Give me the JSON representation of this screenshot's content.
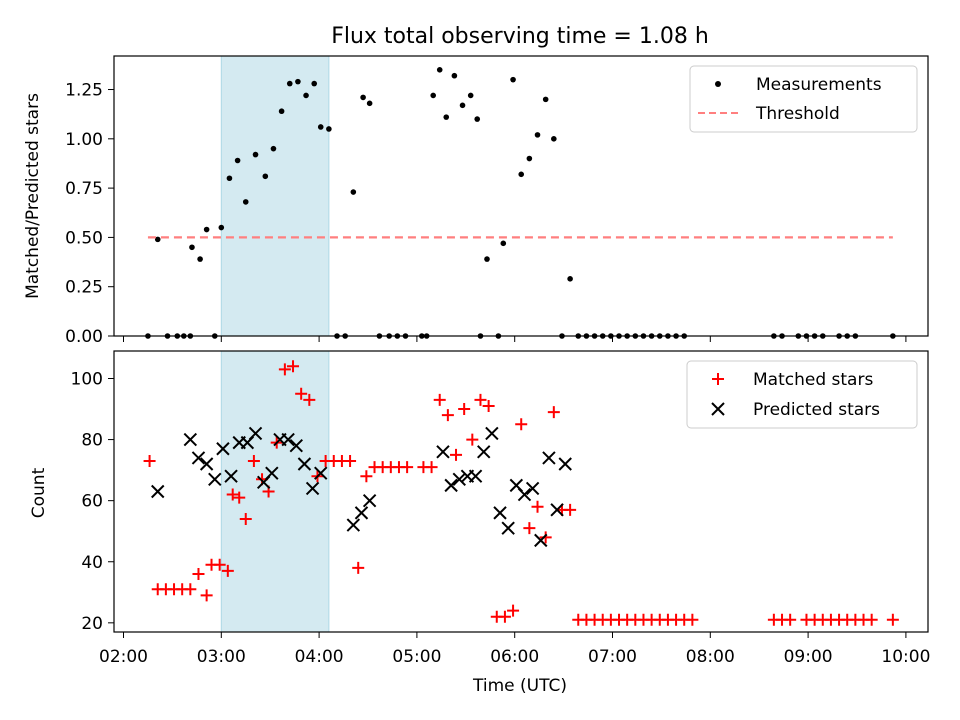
{
  "title": "Flux total observing time = 1.08 h",
  "chart_data": [
    {
      "type": "scatter",
      "ylabel": "Matched/Predicted stars",
      "xlabel": "",
      "xlim": [
        "02:00",
        "10:00"
      ],
      "ylim": [
        0,
        1.42
      ],
      "yticks": [
        0.0,
        0.25,
        0.5,
        0.75,
        1.0,
        1.25
      ],
      "ytick_labels": [
        "0.00",
        "0.25",
        "0.50",
        "0.75",
        "1.00",
        "1.25"
      ],
      "shaded_span": [
        "03:00",
        "04:06"
      ],
      "shade_color": "#d4eaf1",
      "legend": {
        "position": "top-right",
        "entries": [
          "Measurements",
          "Threshold"
        ]
      },
      "series": [
        {
          "name": "Measurements",
          "marker": "dot",
          "color": "#000000",
          "points": [
            [
              "02:15",
              0
            ],
            [
              "02:21",
              0.49
            ],
            [
              "02:27",
              0
            ],
            [
              "02:33",
              0
            ],
            [
              "02:37",
              0
            ],
            [
              "02:41",
              0
            ],
            [
              "02:42",
              0.45
            ],
            [
              "02:47",
              0.39
            ],
            [
              "02:51",
              0.54
            ],
            [
              "02:56",
              0
            ],
            [
              "03:00",
              0.55
            ],
            [
              "03:05",
              0.8
            ],
            [
              "03:10",
              0.89
            ],
            [
              "03:15",
              0.68
            ],
            [
              "03:21",
              0.92
            ],
            [
              "03:27",
              0.81
            ],
            [
              "03:32",
              0.95
            ],
            [
              "03:37",
              1.14
            ],
            [
              "03:42",
              1.28
            ],
            [
              "03:47",
              1.29
            ],
            [
              "03:52",
              1.22
            ],
            [
              "03:57",
              1.28
            ],
            [
              "04:01",
              1.06
            ],
            [
              "04:06",
              1.05
            ],
            [
              "04:11",
              0
            ],
            [
              "04:16",
              0
            ],
            [
              "04:21",
              0.73
            ],
            [
              "04:27",
              1.21
            ],
            [
              "04:31",
              1.18
            ],
            [
              "04:37",
              0
            ],
            [
              "04:43",
              0
            ],
            [
              "04:48",
              0
            ],
            [
              "04:53",
              0
            ],
            [
              "05:03",
              0
            ],
            [
              "05:06",
              0
            ],
            [
              "05:10",
              1.22
            ],
            [
              "05:14",
              1.35
            ],
            [
              "05:18",
              1.11
            ],
            [
              "05:23",
              1.32
            ],
            [
              "05:28",
              1.17
            ],
            [
              "05:33",
              1.22
            ],
            [
              "05:37",
              1.1
            ],
            [
              "05:39",
              0
            ],
            [
              "05:43",
              0.39
            ],
            [
              "05:50",
              0
            ],
            [
              "05:53",
              0.47
            ],
            [
              "05:59",
              1.3
            ],
            [
              "06:04",
              0.82
            ],
            [
              "06:09",
              0.9
            ],
            [
              "06:14",
              1.02
            ],
            [
              "06:19",
              1.2
            ],
            [
              "06:24",
              1.0
            ],
            [
              "06:29",
              0
            ],
            [
              "06:34",
              0.29
            ],
            [
              "06:39",
              0
            ],
            [
              "06:44",
              0
            ],
            [
              "06:49",
              0
            ],
            [
              "06:54",
              0
            ],
            [
              "06:59",
              0
            ],
            [
              "07:04",
              0
            ],
            [
              "07:09",
              0
            ],
            [
              "07:14",
              0
            ],
            [
              "07:19",
              0
            ],
            [
              "07:24",
              0
            ],
            [
              "07:29",
              0
            ],
            [
              "07:34",
              0
            ],
            [
              "07:39",
              0
            ],
            [
              "07:44",
              0
            ],
            [
              "08:39",
              0
            ],
            [
              "08:44",
              0
            ],
            [
              "08:54",
              0
            ],
            [
              "08:59",
              0
            ],
            [
              "09:04",
              0
            ],
            [
              "09:09",
              0
            ],
            [
              "09:19",
              0
            ],
            [
              "09:24",
              0
            ],
            [
              "09:29",
              0
            ],
            [
              "09:52",
              0
            ]
          ]
        },
        {
          "name": "Threshold",
          "style": "dashed",
          "color": "#ff7f7f",
          "points": [
            [
              "02:15",
              0.5
            ],
            [
              "09:52",
              0.5
            ]
          ]
        }
      ]
    },
    {
      "type": "scatter",
      "ylabel": "Count",
      "xlabel": "Time (UTC)",
      "xlim": [
        "02:00",
        "10:00"
      ],
      "ylim": [
        17,
        109
      ],
      "yticks": [
        20,
        40,
        60,
        80,
        100
      ],
      "ytick_labels": [
        "20",
        "40",
        "60",
        "80",
        "100"
      ],
      "xticks": [
        "02:00",
        "03:00",
        "04:00",
        "05:00",
        "06:00",
        "07:00",
        "08:00",
        "09:00",
        "10:00"
      ],
      "shaded_span": [
        "03:00",
        "04:06"
      ],
      "shade_color": "#d4eaf1",
      "legend": {
        "position": "top-right",
        "entries": [
          "Matched stars",
          "Predicted stars"
        ]
      },
      "series": [
        {
          "name": "Matched stars",
          "marker": "plus",
          "color": "#ff0000",
          "points": [
            [
              "02:16",
              73
            ],
            [
              "02:21",
              31
            ],
            [
              "02:26",
              31
            ],
            [
              "02:31",
              31
            ],
            [
              "02:36",
              31
            ],
            [
              "02:41",
              31
            ],
            [
              "02:46",
              36
            ],
            [
              "02:51",
              29
            ],
            [
              "02:54",
              39
            ],
            [
              "02:59",
              39
            ],
            [
              "03:04",
              37
            ],
            [
              "03:07",
              62
            ],
            [
              "03:11",
              61
            ],
            [
              "03:15",
              54
            ],
            [
              "03:20",
              73
            ],
            [
              "03:25",
              67
            ],
            [
              "03:29",
              63
            ],
            [
              "03:34",
              79
            ],
            [
              "03:39",
              103
            ],
            [
              "03:44",
              104
            ],
            [
              "03:49",
              95
            ],
            [
              "03:54",
              93
            ],
            [
              "03:59",
              68
            ],
            [
              "04:04",
              73
            ],
            [
              "04:09",
              73
            ],
            [
              "04:14",
              73
            ],
            [
              "04:19",
              73
            ],
            [
              "04:24",
              38
            ],
            [
              "04:29",
              68
            ],
            [
              "04:34",
              71
            ],
            [
              "04:39",
              71
            ],
            [
              "04:44",
              71
            ],
            [
              "04:49",
              71
            ],
            [
              "04:54",
              71
            ],
            [
              "05:04",
              71
            ],
            [
              "05:09",
              71
            ],
            [
              "05:14",
              93
            ],
            [
              "05:19",
              88
            ],
            [
              "05:24",
              75
            ],
            [
              "05:29",
              90
            ],
            [
              "05:34",
              80
            ],
            [
              "05:39",
              93
            ],
            [
              "05:44",
              91
            ],
            [
              "05:49",
              22
            ],
            [
              "05:54",
              22
            ],
            [
              "05:59",
              24
            ],
            [
              "06:04",
              85
            ],
            [
              "06:09",
              51
            ],
            [
              "06:14",
              58
            ],
            [
              "06:19",
              48
            ],
            [
              "06:24",
              89
            ],
            [
              "06:29",
              57
            ],
            [
              "06:34",
              57
            ],
            [
              "06:39",
              21
            ],
            [
              "06:44",
              21
            ],
            [
              "06:49",
              21
            ],
            [
              "06:54",
              21
            ],
            [
              "06:59",
              21
            ],
            [
              "07:04",
              21
            ],
            [
              "07:09",
              21
            ],
            [
              "07:14",
              21
            ],
            [
              "07:19",
              21
            ],
            [
              "07:24",
              21
            ],
            [
              "07:29",
              21
            ],
            [
              "07:34",
              21
            ],
            [
              "07:39",
              21
            ],
            [
              "07:44",
              21
            ],
            [
              "07:49",
              21
            ],
            [
              "08:39",
              21
            ],
            [
              "08:44",
              21
            ],
            [
              "08:49",
              21
            ],
            [
              "08:59",
              21
            ],
            [
              "09:04",
              21
            ],
            [
              "09:09",
              21
            ],
            [
              "09:14",
              21
            ],
            [
              "09:19",
              21
            ],
            [
              "09:24",
              21
            ],
            [
              "09:29",
              21
            ],
            [
              "09:34",
              21
            ],
            [
              "09:39",
              21
            ],
            [
              "09:52",
              21
            ]
          ]
        },
        {
          "name": "Predicted stars",
          "marker": "x",
          "color": "#000000",
          "points": [
            [
              "02:21",
              63
            ],
            [
              "02:41",
              80
            ],
            [
              "02:46",
              74
            ],
            [
              "02:51",
              72
            ],
            [
              "02:56",
              67
            ],
            [
              "03:01",
              77
            ],
            [
              "03:06",
              68
            ],
            [
              "03:11",
              79
            ],
            [
              "03:16",
              79
            ],
            [
              "03:21",
              82
            ],
            [
              "03:26",
              66
            ],
            [
              "03:31",
              69
            ],
            [
              "03:36",
              80
            ],
            [
              "03:41",
              80
            ],
            [
              "03:46",
              78
            ],
            [
              "03:51",
              72
            ],
            [
              "03:56",
              64
            ],
            [
              "04:01",
              69
            ],
            [
              "04:21",
              52
            ],
            [
              "04:26",
              56
            ],
            [
              "04:31",
              60
            ],
            [
              "05:16",
              76
            ],
            [
              "05:21",
              65
            ],
            [
              "05:26",
              67
            ],
            [
              "05:31",
              68
            ],
            [
              "05:36",
              68
            ],
            [
              "05:41",
              76
            ],
            [
              "05:46",
              82
            ],
            [
              "05:51",
              56
            ],
            [
              "05:56",
              51
            ],
            [
              "06:01",
              65
            ],
            [
              "06:06",
              62
            ],
            [
              "06:11",
              64
            ],
            [
              "06:16",
              47
            ],
            [
              "06:21",
              74
            ],
            [
              "06:26",
              57
            ],
            [
              "06:31",
              72
            ]
          ]
        }
      ]
    }
  ]
}
